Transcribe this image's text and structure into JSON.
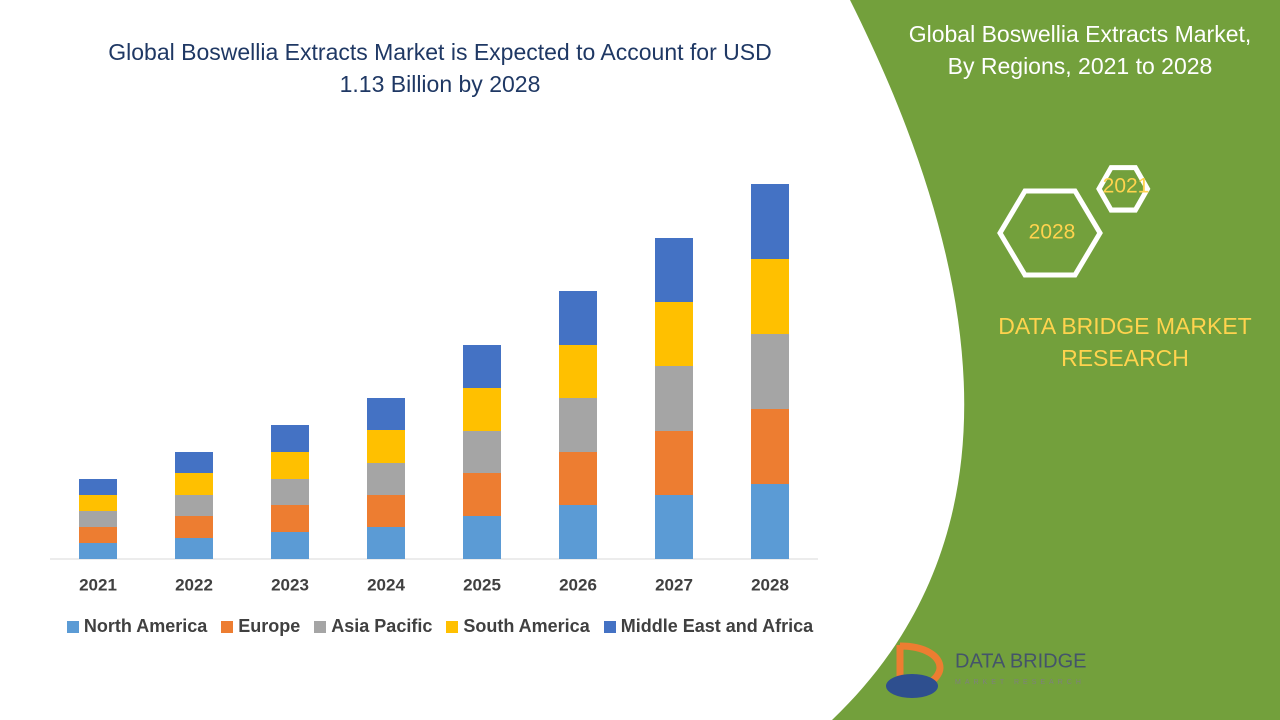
{
  "chart_data": {
    "type": "stacked-bar",
    "title": "Global Boswellia Extracts Market is Expected to Account for USD 1.13 Billion by 2028",
    "categories": [
      "2021",
      "2022",
      "2023",
      "2024",
      "2025",
      "2026",
      "2027",
      "2028"
    ],
    "series": [
      {
        "name": "North America",
        "color": "#5b9bd5",
        "values": [
          16,
          21,
          27,
          32,
          43,
          54,
          64,
          75
        ]
      },
      {
        "name": "Europe",
        "color": "#ed7d31",
        "values": [
          16,
          22,
          27,
          32,
          43,
          53,
          64,
          75
        ]
      },
      {
        "name": "Asia Pacific",
        "color": "#a5a5a5",
        "values": [
          16,
          21,
          26,
          32,
          42,
          54,
          65,
          75
        ]
      },
      {
        "name": "South America",
        "color": "#ffc000",
        "values": [
          16,
          22,
          27,
          33,
          43,
          53,
          64,
          75
        ]
      },
      {
        "name": "Middle East and Africa",
        "color": "#4472c4",
        "values": [
          16,
          21,
          27,
          32,
          43,
          54,
          64,
          75
        ]
      }
    ]
  },
  "panel": {
    "title": "Global Boswellia Extracts Market, By Regions, 2021 to 2028",
    "hex_labels": [
      "2021",
      "2028"
    ],
    "brand": "DATA BRIDGE MARKET RESEARCH",
    "logo_name": "DATA BRIDGE",
    "logo_sub": "MARKET RESEARCH"
  }
}
